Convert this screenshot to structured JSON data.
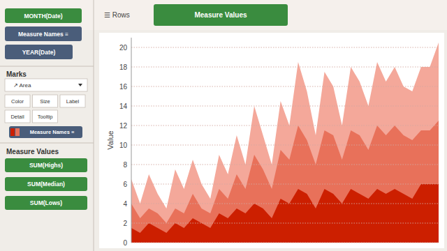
{
  "chart_data": {
    "type": "area",
    "y_label": "Value",
    "series": [
      {
        "color": "#F4A89A",
        "values": [
          6.5,
          4.0,
          7.0,
          5.0,
          3.5,
          7.5,
          5.5,
          8.5,
          6.0,
          4.5,
          9.0,
          7.0,
          11.0,
          8.0,
          14.0,
          11.0,
          8.0,
          14.5,
          12.0,
          18.5,
          15.5,
          11.0,
          17.5,
          16.0,
          12.0,
          18.0,
          16.5,
          14.0,
          18.5,
          16.5,
          18.0,
          16.0,
          15.5,
          18.0,
          18.0,
          20.5
        ]
      },
      {
        "color": "#E8715A",
        "values": [
          4.0,
          2.5,
          3.5,
          3.0,
          2.0,
          3.5,
          3.0,
          5.0,
          3.5,
          3.0,
          5.5,
          4.5,
          7.0,
          5.5,
          9.0,
          7.5,
          5.5,
          9.5,
          8.5,
          12.0,
          10.5,
          8.0,
          11.5,
          11.0,
          8.5,
          11.5,
          11.0,
          9.5,
          12.0,
          11.0,
          12.0,
          11.0,
          10.5,
          11.5,
          11.5,
          12.5
        ]
      },
      {
        "color": "#CC1F00",
        "values": [
          1.5,
          1.0,
          2.0,
          1.5,
          1.0,
          2.0,
          1.5,
          2.5,
          2.0,
          1.5,
          3.0,
          2.5,
          3.5,
          3.0,
          4.0,
          3.5,
          2.5,
          4.5,
          4.0,
          5.5,
          5.0,
          3.5,
          5.5,
          5.0,
          4.0,
          5.5,
          5.0,
          4.5,
          5.5,
          5.0,
          5.5,
          5.0,
          4.5,
          6.0,
          6.0,
          6.0
        ]
      }
    ],
    "ylim": [
      0,
      21
    ],
    "yticks": [
      0,
      2,
      4,
      6,
      8,
      10,
      12,
      14,
      16,
      18,
      20
    ],
    "grid": true,
    "tick_labels": "y",
    "annotations": [
      "MONTH(Date)",
      "Measure Names  ≡",
      "YEAR(Date)",
      "Marks",
      "↗ Area",
      "Color",
      "Size",
      "Label",
      "Detail",
      "Tooltip",
      "Measure Names  ≡",
      "Measure Values",
      "SUM(Highs)",
      "SUM(Median)",
      "SUM(Lows)",
      "☰ Rows",
      "Measure Values"
    ]
  }
}
